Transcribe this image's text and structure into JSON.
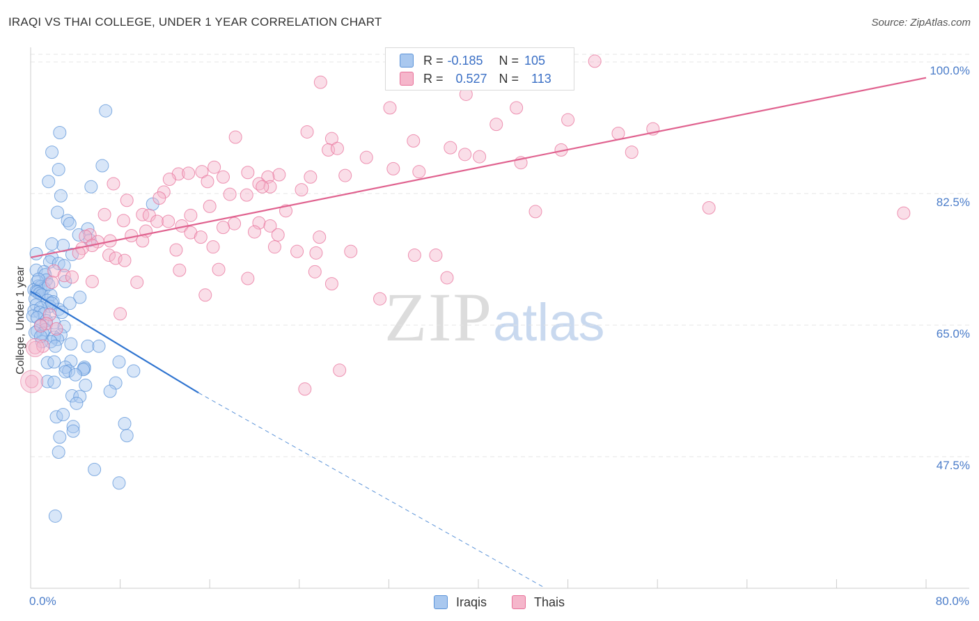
{
  "title": "IRAQI VS THAI COLLEGE, UNDER 1 YEAR CORRELATION CHART",
  "source": "Source: ZipAtlas.com",
  "watermark": {
    "zip": "ZIP",
    "atlas": "atlas"
  },
  "legend_top": [
    {
      "r_label": "R =",
      "r_value": "-0.185",
      "n_label": "N =",
      "n_value": "105",
      "color": "#a9c8ef"
    },
    {
      "r_label": "R =",
      "r_value": "0.527",
      "n_label": "N =",
      "n_value": "113",
      "color": "#f5b6cb"
    }
  ],
  "legend_bottom": [
    {
      "label": "Iraqis",
      "color": "#a9c8ef"
    },
    {
      "label": "Thais",
      "color": "#f5b6cb"
    }
  ],
  "chart_data": {
    "type": "scatter",
    "title": "IRAQI VS THAI COLLEGE, UNDER 1 YEAR CORRELATION CHART",
    "xlabel": "",
    "ylabel": "College, Under 1 year",
    "xlim": [
      0,
      80
    ],
    "ylim": [
      30.0,
      102.5
    ],
    "x_tick_labels": [
      "0.0%",
      "80.0%"
    ],
    "y_ticks": [
      47.5,
      65.0,
      82.5,
      100.0
    ],
    "y_tick_labels": [
      "47.5%",
      "65.0%",
      "82.5%",
      "100.0%"
    ],
    "grid": true,
    "series": [
      {
        "name": "Iraqis",
        "color": "#5b93d8",
        "fill": "#a9c8ef",
        "trend": {
          "x0": 0.0,
          "y0": 69.5,
          "x1": 15.0,
          "y1": 56.0,
          "dash_x1": 46.0,
          "dash_y1": 30.0
        },
        "points": [
          [
            6.7,
            93.5
          ],
          [
            2.6,
            90.6
          ],
          [
            1.9,
            88.0
          ],
          [
            6.4,
            86.2
          ],
          [
            2.5,
            85.7
          ],
          [
            1.6,
            84.1
          ],
          [
            5.4,
            83.4
          ],
          [
            2.7,
            82.2
          ],
          [
            2.4,
            80.0
          ],
          [
            3.3,
            78.9
          ],
          [
            3.5,
            78.5
          ],
          [
            10.9,
            81.1
          ],
          [
            5.1,
            77.8
          ],
          [
            4.3,
            77.0
          ],
          [
            2.9,
            75.6
          ],
          [
            1.9,
            75.8
          ],
          [
            3.7,
            74.4
          ],
          [
            0.5,
            74.5
          ],
          [
            1.9,
            74.0
          ],
          [
            1.7,
            73.4
          ],
          [
            2.5,
            73.2
          ],
          [
            3.0,
            72.9
          ],
          [
            0.5,
            72.3
          ],
          [
            1.2,
            72.1
          ],
          [
            1.3,
            71.7
          ],
          [
            1.4,
            71.0
          ],
          [
            0.6,
            70.8
          ],
          [
            3.1,
            70.8
          ],
          [
            0.7,
            70.2
          ],
          [
            0.9,
            70.1
          ],
          [
            1.2,
            69.9
          ],
          [
            0.3,
            69.7
          ],
          [
            0.5,
            69.5
          ],
          [
            0.6,
            69.4
          ],
          [
            0.8,
            69.2
          ],
          [
            1.0,
            69.0
          ],
          [
            1.8,
            69.0
          ],
          [
            4.4,
            68.7
          ],
          [
            0.4,
            68.5
          ],
          [
            1.5,
            68.3
          ],
          [
            2.0,
            68.1
          ],
          [
            3.5,
            67.9
          ],
          [
            0.5,
            67.7
          ],
          [
            1.7,
            67.5
          ],
          [
            0.9,
            67.3
          ],
          [
            2.5,
            67.1
          ],
          [
            0.3,
            66.9
          ],
          [
            0.8,
            66.7
          ],
          [
            1.2,
            66.5
          ],
          [
            0.2,
            66.2
          ],
          [
            0.6,
            66.0
          ],
          [
            1.4,
            65.6
          ],
          [
            2.1,
            65.3
          ],
          [
            0.9,
            65.0
          ],
          [
            3.0,
            64.8
          ],
          [
            1.3,
            64.4
          ],
          [
            0.6,
            64.2
          ],
          [
            1.1,
            63.9
          ],
          [
            2.7,
            63.7
          ],
          [
            2.1,
            63.4
          ],
          [
            2.4,
            63.1
          ],
          [
            1.8,
            62.8
          ],
          [
            3.6,
            62.5
          ],
          [
            2.2,
            62.2
          ],
          [
            5.1,
            62.2
          ],
          [
            6.1,
            62.2
          ],
          [
            1.5,
            60.0
          ],
          [
            2.1,
            60.1
          ],
          [
            3.6,
            60.2
          ],
          [
            7.9,
            60.1
          ],
          [
            3.1,
            59.4
          ],
          [
            4.8,
            59.4
          ],
          [
            4.8,
            59.2
          ],
          [
            3.4,
            58.9
          ],
          [
            3.1,
            58.8
          ],
          [
            1.5,
            57.5
          ],
          [
            2.1,
            57.4
          ],
          [
            7.6,
            57.3
          ],
          [
            4.9,
            57.0
          ],
          [
            7.1,
            56.2
          ],
          [
            3.7,
            55.6
          ],
          [
            4.4,
            55.5
          ],
          [
            4.1,
            54.6
          ],
          [
            2.3,
            52.8
          ],
          [
            2.9,
            53.1
          ],
          [
            3.8,
            51.5
          ],
          [
            8.4,
            51.9
          ],
          [
            3.8,
            50.9
          ],
          [
            8.6,
            50.3
          ],
          [
            2.6,
            50.1
          ],
          [
            2.5,
            48.1
          ],
          [
            5.7,
            45.8
          ],
          [
            7.9,
            44.0
          ],
          [
            2.2,
            39.6
          ],
          [
            9.2,
            58.9
          ],
          [
            4.7,
            59.1
          ],
          [
            2.8,
            66.7
          ],
          [
            1.6,
            70.4
          ],
          [
            0.7,
            71.1
          ],
          [
            1.9,
            67.9
          ],
          [
            0.4,
            64.0
          ],
          [
            1.0,
            62.8
          ],
          [
            4.0,
            58.4
          ],
          [
            5.3,
            76.3
          ],
          [
            0.9,
            63.5
          ]
        ]
      },
      {
        "name": "Thais",
        "color": "#e87099",
        "fill": "#f5b6cb",
        "trend": {
          "x0": 0.0,
          "y0": 74.0,
          "x1": 80.0,
          "y1": 97.9
        },
        "points": [
          [
            50.4,
            100.1
          ],
          [
            25.9,
            97.3
          ],
          [
            38.9,
            95.7
          ],
          [
            43.4,
            93.9
          ],
          [
            32.1,
            93.9
          ],
          [
            48.0,
            92.3
          ],
          [
            41.6,
            91.7
          ],
          [
            55.6,
            91.1
          ],
          [
            52.5,
            90.5
          ],
          [
            24.7,
            90.7
          ],
          [
            18.3,
            90.0
          ],
          [
            26.9,
            89.8
          ],
          [
            34.2,
            89.5
          ],
          [
            26.6,
            88.3
          ],
          [
            47.4,
            88.3
          ],
          [
            53.7,
            88.0
          ],
          [
            27.4,
            88.5
          ],
          [
            37.5,
            88.6
          ],
          [
            30.0,
            87.3
          ],
          [
            38.8,
            87.7
          ],
          [
            40.1,
            87.4
          ],
          [
            43.8,
            86.6
          ],
          [
            16.4,
            86.0
          ],
          [
            32.4,
            85.8
          ],
          [
            34.7,
            85.4
          ],
          [
            15.3,
            85.4
          ],
          [
            19.4,
            85.3
          ],
          [
            22.2,
            85.0
          ],
          [
            21.2,
            84.7
          ],
          [
            13.2,
            85.1
          ],
          [
            14.1,
            85.2
          ],
          [
            12.4,
            84.4
          ],
          [
            17.2,
            84.7
          ],
          [
            25.0,
            84.7
          ],
          [
            28.1,
            84.9
          ],
          [
            15.8,
            84.1
          ],
          [
            20.4,
            83.8
          ],
          [
            21.4,
            83.4
          ],
          [
            20.7,
            83.4
          ],
          [
            24.2,
            83.0
          ],
          [
            11.9,
            82.7
          ],
          [
            7.4,
            83.8
          ],
          [
            17.8,
            82.4
          ],
          [
            19.3,
            82.3
          ],
          [
            8.6,
            81.6
          ],
          [
            11.5,
            81.9
          ],
          [
            16.0,
            80.8
          ],
          [
            22.8,
            80.2
          ],
          [
            45.1,
            80.1
          ],
          [
            60.6,
            80.6
          ],
          [
            78.0,
            79.9
          ],
          [
            6.6,
            79.7
          ],
          [
            10.0,
            79.7
          ],
          [
            10.6,
            79.6
          ],
          [
            14.3,
            79.6
          ],
          [
            8.3,
            78.9
          ],
          [
            11.3,
            78.8
          ],
          [
            12.3,
            78.8
          ],
          [
            18.2,
            78.5
          ],
          [
            20.4,
            78.6
          ],
          [
            13.5,
            78.2
          ],
          [
            17.2,
            78.0
          ],
          [
            21.4,
            78.2
          ],
          [
            10.3,
            77.5
          ],
          [
            14.3,
            77.3
          ],
          [
            5.3,
            77.0
          ],
          [
            4.9,
            76.8
          ],
          [
            9.0,
            76.9
          ],
          [
            15.2,
            76.7
          ],
          [
            20.0,
            77.4
          ],
          [
            22.1,
            77.0
          ],
          [
            25.8,
            76.7
          ],
          [
            7.1,
            76.2
          ],
          [
            6.0,
            76.1
          ],
          [
            5.5,
            75.6
          ],
          [
            4.6,
            75.2
          ],
          [
            10.0,
            76.2
          ],
          [
            13.0,
            75.0
          ],
          [
            16.3,
            75.4
          ],
          [
            21.8,
            75.4
          ],
          [
            23.8,
            74.8
          ],
          [
            25.5,
            74.6
          ],
          [
            28.6,
            74.8
          ],
          [
            34.3,
            74.3
          ],
          [
            36.2,
            74.3
          ],
          [
            4.3,
            74.6
          ],
          [
            7.0,
            74.3
          ],
          [
            7.6,
            73.9
          ],
          [
            8.4,
            73.6
          ],
          [
            16.8,
            72.4
          ],
          [
            25.4,
            72.1
          ],
          [
            37.2,
            71.3
          ],
          [
            2.1,
            72.2
          ],
          [
            3.0,
            71.6
          ],
          [
            3.7,
            71.4
          ],
          [
            1.9,
            70.7
          ],
          [
            5.5,
            70.8
          ],
          [
            15.6,
            69.0
          ],
          [
            26.9,
            70.5
          ],
          [
            31.2,
            68.5
          ],
          [
            1.7,
            66.4
          ],
          [
            1.4,
            65.2
          ],
          [
            0.9,
            64.9
          ],
          [
            8.0,
            66.5
          ],
          [
            2.3,
            64.5
          ],
          [
            0.4,
            62.0
          ],
          [
            1.1,
            62.2
          ],
          [
            27.6,
            59.0
          ],
          [
            24.5,
            56.5
          ],
          [
            0.1,
            57.5
          ],
          [
            19.4,
            71.2
          ],
          [
            9.5,
            70.7
          ],
          [
            13.3,
            72.3
          ]
        ]
      }
    ]
  }
}
